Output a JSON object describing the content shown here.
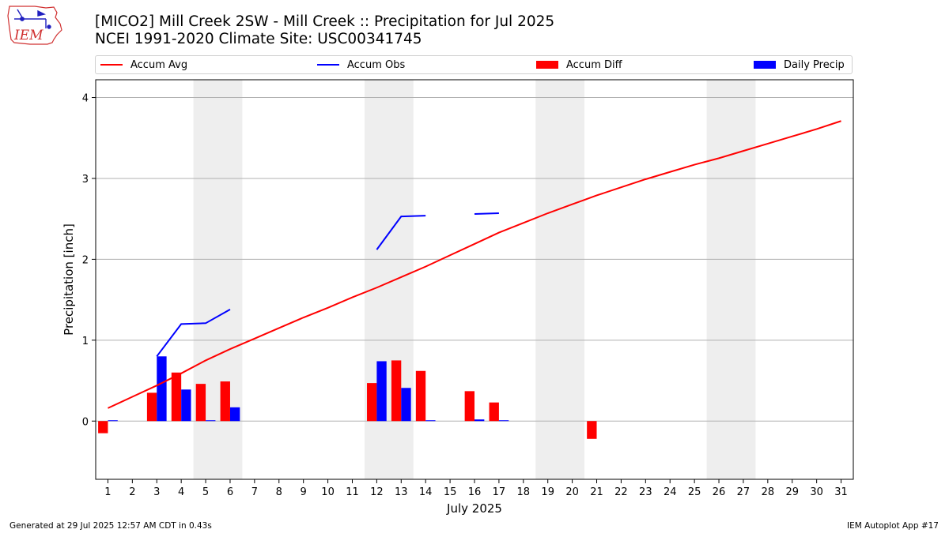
{
  "logo": {
    "text": "IEM"
  },
  "title": {
    "line1": "[MICO2] Mill Creek 2SW - Mill Creek :: Precipitation for Jul 2025",
    "line2": "NCEI 1991-2020 Climate Site: USC00341745"
  },
  "legend": {
    "accum_avg": "Accum Avg",
    "accum_obs": "Accum Obs",
    "accum_diff": "Accum Diff",
    "daily_precip": "Daily Precip"
  },
  "colors": {
    "avg": "#ff0000",
    "obs": "#0000ff",
    "diff": "#ff0000",
    "daily": "#0000ff",
    "weekend": "#eeeeee",
    "grid": "#b0b0b0"
  },
  "footer": {
    "left": "Generated at 29 Jul 2025 12:57 AM CDT in 0.43s",
    "right": "IEM Autoplot App #17"
  },
  "chart_data": {
    "type": "bar",
    "xlabel": "July 2025",
    "ylabel": "Precipitation [inch]",
    "days": [
      1,
      2,
      3,
      4,
      5,
      6,
      7,
      8,
      9,
      10,
      11,
      12,
      13,
      14,
      15,
      16,
      17,
      18,
      19,
      20,
      21,
      22,
      23,
      24,
      25,
      26,
      27,
      28,
      29,
      30,
      31
    ],
    "yticks": [
      0,
      1,
      2,
      3,
      4
    ],
    "ylim": [
      -0.72,
      4.22
    ],
    "grid": "horizontal",
    "legend_position": "top",
    "weekend_shading": [
      [
        5,
        6
      ],
      [
        12,
        13
      ],
      [
        19,
        20
      ],
      [
        26,
        27
      ]
    ],
    "series": [
      {
        "name": "Accum Avg",
        "kind": "line",
        "values": [
          0.16,
          0.3,
          0.44,
          0.59,
          0.75,
          0.89,
          1.02,
          1.15,
          1.28,
          1.4,
          1.53,
          1.65,
          1.78,
          1.91,
          2.05,
          2.19,
          2.33,
          2.45,
          2.57,
          2.68,
          2.79,
          2.89,
          2.99,
          3.08,
          3.17,
          3.25,
          3.34,
          3.43,
          3.52,
          3.61,
          3.71
        ]
      },
      {
        "name": "Accum Obs",
        "kind": "line",
        "values": [
          null,
          null,
          0.8,
          1.2,
          1.21,
          1.38,
          null,
          null,
          null,
          null,
          null,
          2.12,
          2.53,
          2.54,
          null,
          2.56,
          2.57,
          null,
          null,
          null,
          null,
          null,
          null,
          null,
          null,
          null,
          null,
          null,
          null,
          null,
          null
        ]
      },
      {
        "name": "Accum Diff",
        "kind": "bar",
        "values": [
          -0.15,
          null,
          0.35,
          0.6,
          0.46,
          0.49,
          null,
          null,
          null,
          null,
          null,
          0.47,
          0.75,
          0.62,
          null,
          0.37,
          0.23,
          null,
          null,
          null,
          -0.22,
          null,
          null,
          null,
          null,
          null,
          null,
          null,
          null,
          null,
          null
        ]
      },
      {
        "name": "Daily Precip",
        "kind": "bar",
        "values": [
          0.01,
          null,
          0.8,
          0.39,
          0.01,
          0.17,
          null,
          null,
          null,
          null,
          null,
          0.74,
          0.41,
          0.01,
          null,
          0.02,
          0.01,
          null,
          null,
          null,
          null,
          null,
          null,
          null,
          null,
          null,
          null,
          null,
          null,
          null,
          null
        ]
      }
    ]
  }
}
